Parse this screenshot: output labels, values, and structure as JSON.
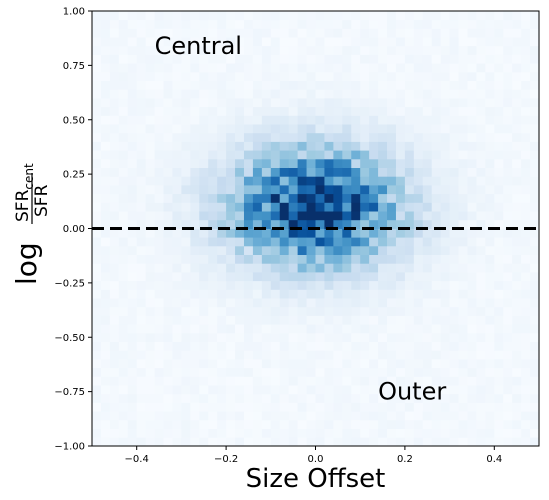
{
  "chart_data": {
    "type": "heatmap",
    "title": "",
    "xlabel": "Size Offset",
    "ylabel": {
      "prefix": "log",
      "numerator_main": "SFR",
      "numerator_sub": "cent",
      "denominator": "SFR"
    },
    "xlim": [
      -0.5,
      0.5
    ],
    "ylim": [
      -1.0,
      1.0
    ],
    "xticks": [
      -0.4,
      -0.2,
      0.0,
      0.2,
      0.4
    ],
    "xtick_labels": [
      "−0.4",
      "−0.2",
      "0.0",
      "0.2",
      "0.4"
    ],
    "yticks": [
      -1.0,
      -0.75,
      -0.5,
      -0.25,
      0.0,
      0.25,
      0.5,
      0.75,
      1.0
    ],
    "ytick_labels": [
      "−1.00",
      "−0.75",
      "−0.50",
      "−0.25",
      "0.00",
      "0.25",
      "0.50",
      "0.75",
      "1.00"
    ],
    "colormap": "Blues",
    "bins": [
      50,
      50
    ],
    "density_peak": {
      "x": 0.0,
      "y": 0.1,
      "sigma_x": 0.12,
      "sigma_y": 0.17
    },
    "reference_line": {
      "y": 0.0,
      "style": "dashed",
      "color": "#000000"
    },
    "annotations": [
      {
        "text": "Central",
        "x": -0.36,
        "y": 0.84
      },
      {
        "text": "Outer",
        "x": 0.14,
        "y": -0.75
      }
    ],
    "grid": false
  }
}
